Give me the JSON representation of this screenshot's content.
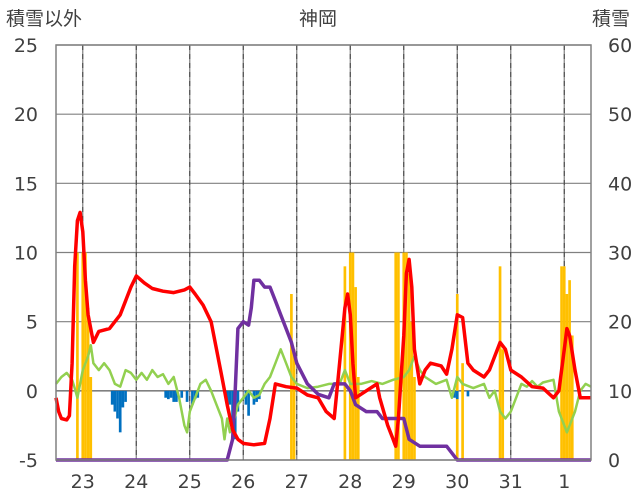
{
  "chart_data": {
    "type": "line",
    "title": "神岡",
    "left_axis": {
      "label": "積雪以外",
      "ylim": [
        -5,
        25
      ],
      "ticks": [
        -5,
        0,
        5,
        10,
        15,
        20,
        25
      ]
    },
    "right_axis": {
      "label": "積雪",
      "ylim": [
        0,
        60
      ],
      "ticks": [
        0,
        10,
        20,
        30,
        40,
        50,
        60
      ]
    },
    "x_axis": {
      "xlim": [
        22.5,
        32.5
      ],
      "day_labels": [
        "23",
        "24",
        "25",
        "26",
        "27",
        "28",
        "29",
        "30",
        "31",
        "1"
      ],
      "grid": "dashed-at-noon"
    },
    "colors": {
      "red": "#ff0000",
      "green": "#92d050",
      "purple": "#7030a0",
      "orange": "#ffc000",
      "blue": "#0070c0",
      "grid": "#808080",
      "zero": "#808080"
    },
    "series_red": [
      [
        22.5,
        -0.5
      ],
      [
        22.55,
        -1.5
      ],
      [
        22.6,
        -2.0
      ],
      [
        22.7,
        -2.1
      ],
      [
        22.75,
        -1.8
      ],
      [
        22.8,
        2.0
      ],
      [
        22.85,
        9.0
      ],
      [
        22.9,
        12.3
      ],
      [
        22.95,
        12.9
      ],
      [
        23.0,
        11.5
      ],
      [
        23.05,
        8.0
      ],
      [
        23.1,
        5.5
      ],
      [
        23.2,
        3.5
      ],
      [
        23.3,
        4.3
      ],
      [
        23.5,
        4.5
      ],
      [
        23.7,
        5.5
      ],
      [
        23.9,
        7.5
      ],
      [
        24.0,
        8.3
      ],
      [
        24.15,
        7.8
      ],
      [
        24.3,
        7.4
      ],
      [
        24.5,
        7.2
      ],
      [
        24.7,
        7.1
      ],
      [
        24.9,
        7.3
      ],
      [
        25.0,
        7.5
      ],
      [
        25.1,
        7.0
      ],
      [
        25.25,
        6.2
      ],
      [
        25.4,
        5.0
      ],
      [
        25.5,
        3.0
      ],
      [
        25.6,
        1.0
      ],
      [
        25.7,
        -1.0
      ],
      [
        25.8,
        -2.8
      ],
      [
        25.9,
        -3.5
      ],
      [
        26.0,
        -3.8
      ],
      [
        26.2,
        -3.9
      ],
      [
        26.4,
        -3.8
      ],
      [
        26.5,
        -2.0
      ],
      [
        26.6,
        0.5
      ],
      [
        26.8,
        0.3
      ],
      [
        27.0,
        0.2
      ],
      [
        27.2,
        -0.3
      ],
      [
        27.4,
        -0.5
      ],
      [
        27.55,
        -1.5
      ],
      [
        27.7,
        -2.0
      ],
      [
        27.8,
        2.0
      ],
      [
        27.9,
        6.0
      ],
      [
        27.95,
        7.0
      ],
      [
        28.0,
        5.5
      ],
      [
        28.05,
        2.0
      ],
      [
        28.1,
        -0.5
      ],
      [
        28.3,
        0.0
      ],
      [
        28.5,
        0.5
      ],
      [
        28.55,
        -0.5
      ],
      [
        28.7,
        -2.5
      ],
      [
        28.8,
        -3.5
      ],
      [
        28.85,
        -4.0
      ],
      [
        28.9,
        -2.0
      ],
      [
        29.0,
        4.0
      ],
      [
        29.05,
        8.5
      ],
      [
        29.1,
        9.5
      ],
      [
        29.15,
        7.5
      ],
      [
        29.2,
        3.0
      ],
      [
        29.3,
        0.5
      ],
      [
        29.4,
        1.5
      ],
      [
        29.5,
        2.0
      ],
      [
        29.7,
        1.8
      ],
      [
        29.8,
        1.2
      ],
      [
        29.9,
        3.0
      ],
      [
        30.0,
        5.5
      ],
      [
        30.1,
        5.3
      ],
      [
        30.2,
        2.0
      ],
      [
        30.3,
        1.5
      ],
      [
        30.5,
        1.0
      ],
      [
        30.6,
        1.5
      ],
      [
        30.8,
        3.5
      ],
      [
        30.9,
        3.0
      ],
      [
        31.0,
        1.5
      ],
      [
        31.2,
        1.0
      ],
      [
        31.4,
        0.3
      ],
      [
        31.6,
        0.2
      ],
      [
        31.8,
        -0.5
      ],
      [
        31.9,
        0.0
      ],
      [
        32.0,
        3.0
      ],
      [
        32.05,
        4.5
      ],
      [
        32.1,
        4.0
      ],
      [
        32.2,
        1.5
      ],
      [
        32.3,
        -0.5
      ],
      [
        32.5,
        -0.5
      ]
    ],
    "series_green": [
      [
        22.5,
        0.5
      ],
      [
        22.6,
        1.0
      ],
      [
        22.7,
        1.3
      ],
      [
        22.8,
        0.8
      ],
      [
        22.85,
        0.2
      ],
      [
        22.9,
        -0.5
      ],
      [
        22.95,
        0.5
      ],
      [
        23.0,
        1.5
      ],
      [
        23.1,
        2.5
      ],
      [
        23.15,
        3.3
      ],
      [
        23.2,
        2.0
      ],
      [
        23.3,
        1.5
      ],
      [
        23.4,
        2.0
      ],
      [
        23.5,
        1.5
      ],
      [
        23.6,
        0.5
      ],
      [
        23.7,
        0.3
      ],
      [
        23.8,
        1.5
      ],
      [
        23.9,
        1.3
      ],
      [
        24.0,
        0.8
      ],
      [
        24.1,
        1.3
      ],
      [
        24.2,
        0.8
      ],
      [
        24.3,
        1.5
      ],
      [
        24.4,
        1.0
      ],
      [
        24.5,
        1.2
      ],
      [
        24.6,
        0.5
      ],
      [
        24.7,
        1.0
      ],
      [
        24.8,
        -0.5
      ],
      [
        24.9,
        -2.5
      ],
      [
        24.95,
        -3.0
      ],
      [
        25.0,
        -1.5
      ],
      [
        25.1,
        -0.5
      ],
      [
        25.2,
        0.5
      ],
      [
        25.3,
        0.8
      ],
      [
        25.4,
        0.0
      ],
      [
        25.5,
        -1.0
      ],
      [
        25.6,
        -2.0
      ],
      [
        25.65,
        -3.5
      ],
      [
        25.7,
        -2.0
      ],
      [
        25.75,
        -3.0
      ],
      [
        25.8,
        -2.5
      ],
      [
        25.9,
        -1.0
      ],
      [
        26.0,
        -0.5
      ],
      [
        26.1,
        0.0
      ],
      [
        26.2,
        -0.5
      ],
      [
        26.3,
        -0.3
      ],
      [
        26.4,
        0.5
      ],
      [
        26.5,
        1.0
      ],
      [
        26.6,
        2.0
      ],
      [
        26.7,
        3.0
      ],
      [
        26.8,
        2.0
      ],
      [
        26.9,
        1.0
      ],
      [
        27.0,
        0.5
      ],
      [
        27.2,
        0.2
      ],
      [
        27.4,
        0.3
      ],
      [
        27.6,
        0.5
      ],
      [
        27.8,
        0.5
      ],
      [
        27.9,
        1.5
      ],
      [
        28.0,
        0.5
      ],
      [
        28.2,
        0.5
      ],
      [
        28.4,
        0.7
      ],
      [
        28.6,
        0.5
      ],
      [
        28.8,
        0.8
      ],
      [
        29.0,
        1.0
      ],
      [
        29.1,
        1.5
      ],
      [
        29.2,
        2.5
      ],
      [
        29.3,
        1.5
      ],
      [
        29.4,
        1.0
      ],
      [
        29.6,
        0.5
      ],
      [
        29.8,
        0.8
      ],
      [
        29.9,
        -0.5
      ],
      [
        30.0,
        1.0
      ],
      [
        30.1,
        0.5
      ],
      [
        30.3,
        0.2
      ],
      [
        30.5,
        0.5
      ],
      [
        30.6,
        -0.5
      ],
      [
        30.7,
        0.0
      ],
      [
        30.8,
        -1.5
      ],
      [
        30.9,
        -2.0
      ],
      [
        31.0,
        -1.5
      ],
      [
        31.1,
        -0.5
      ],
      [
        31.2,
        0.5
      ],
      [
        31.3,
        0.3
      ],
      [
        31.4,
        0.7
      ],
      [
        31.5,
        0.3
      ],
      [
        31.6,
        0.6
      ],
      [
        31.8,
        0.8
      ],
      [
        31.9,
        -1.5
      ],
      [
        32.0,
        -2.5
      ],
      [
        32.05,
        -3.0
      ],
      [
        32.1,
        -2.5
      ],
      [
        32.2,
        -1.5
      ],
      [
        32.3,
        0.0
      ],
      [
        32.4,
        0.5
      ],
      [
        32.5,
        0.3
      ]
    ],
    "series_purple": [
      [
        22.5,
        0.0
      ],
      [
        25.7,
        0.0
      ],
      [
        25.8,
        3.0
      ],
      [
        25.85,
        10.0
      ],
      [
        25.9,
        19.0
      ],
      [
        26.0,
        20.0
      ],
      [
        26.1,
        19.5
      ],
      [
        26.15,
        22.0
      ],
      [
        26.2,
        26.0
      ],
      [
        26.3,
        26.0
      ],
      [
        26.4,
        25.0
      ],
      [
        26.5,
        25.0
      ],
      [
        26.6,
        23.0
      ],
      [
        26.7,
        21.0
      ],
      [
        26.8,
        19.0
      ],
      [
        26.9,
        17.0
      ],
      [
        27.0,
        14.0
      ],
      [
        27.2,
        11.0
      ],
      [
        27.4,
        9.5
      ],
      [
        27.6,
        9.0
      ],
      [
        27.7,
        11.0
      ],
      [
        27.9,
        11.0
      ],
      [
        28.0,
        10.0
      ],
      [
        28.1,
        8.0
      ],
      [
        28.3,
        7.0
      ],
      [
        28.5,
        7.0
      ],
      [
        28.6,
        6.0
      ],
      [
        28.8,
        6.0
      ],
      [
        29.0,
        6.0
      ],
      [
        29.1,
        3.0
      ],
      [
        29.3,
        2.0
      ],
      [
        29.6,
        2.0
      ],
      [
        29.8,
        2.0
      ],
      [
        29.9,
        1.0
      ],
      [
        30.0,
        0.0
      ],
      [
        32.5,
        0.0
      ]
    ],
    "bars_orange": [
      [
        22.9,
        30
      ],
      [
        23.0,
        30
      ],
      [
        23.05,
        30
      ],
      [
        23.1,
        22
      ],
      [
        23.15,
        12
      ],
      [
        27.9,
        28
      ],
      [
        28.0,
        30
      ],
      [
        28.05,
        30
      ],
      [
        28.1,
        25
      ],
      [
        28.15,
        12
      ],
      [
        28.85,
        30
      ],
      [
        28.9,
        30
      ],
      [
        29.0,
        30
      ],
      [
        29.05,
        30
      ],
      [
        29.1,
        27
      ],
      [
        29.15,
        20
      ],
      [
        29.2,
        12
      ],
      [
        30.0,
        24
      ],
      [
        30.1,
        14
      ],
      [
        30.8,
        28
      ],
      [
        30.85,
        16
      ],
      [
        31.95,
        28
      ],
      [
        32.0,
        28
      ],
      [
        32.05,
        24
      ],
      [
        32.1,
        26
      ],
      [
        32.15,
        18
      ],
      [
        26.9,
        24
      ],
      [
        26.95,
        16
      ]
    ],
    "bars_blue": [
      [
        23.55,
        -1.0
      ],
      [
        23.6,
        -1.5
      ],
      [
        23.65,
        -2.0
      ],
      [
        23.7,
        -3.0
      ],
      [
        23.75,
        -1.2
      ],
      [
        23.8,
        -0.8
      ],
      [
        24.55,
        -0.5
      ],
      [
        24.6,
        -0.6
      ],
      [
        24.65,
        -0.5
      ],
      [
        24.7,
        -0.8
      ],
      [
        24.75,
        -0.8
      ],
      [
        24.85,
        -0.5
      ],
      [
        24.95,
        -0.8
      ],
      [
        25.05,
        -1.0
      ],
      [
        25.1,
        -0.6
      ],
      [
        25.15,
        -0.5
      ],
      [
        25.7,
        -0.8
      ],
      [
        25.75,
        -1.0
      ],
      [
        25.8,
        -2.5
      ],
      [
        25.85,
        -3.5
      ],
      [
        25.9,
        -1.5
      ],
      [
        26.05,
        -1.0
      ],
      [
        26.1,
        -1.8
      ],
      [
        26.2,
        -1.0
      ],
      [
        26.25,
        -0.8
      ],
      [
        26.3,
        -0.6
      ],
      [
        29.95,
        -0.5
      ],
      [
        30.0,
        -0.6
      ],
      [
        30.2,
        -0.4
      ]
    ]
  }
}
